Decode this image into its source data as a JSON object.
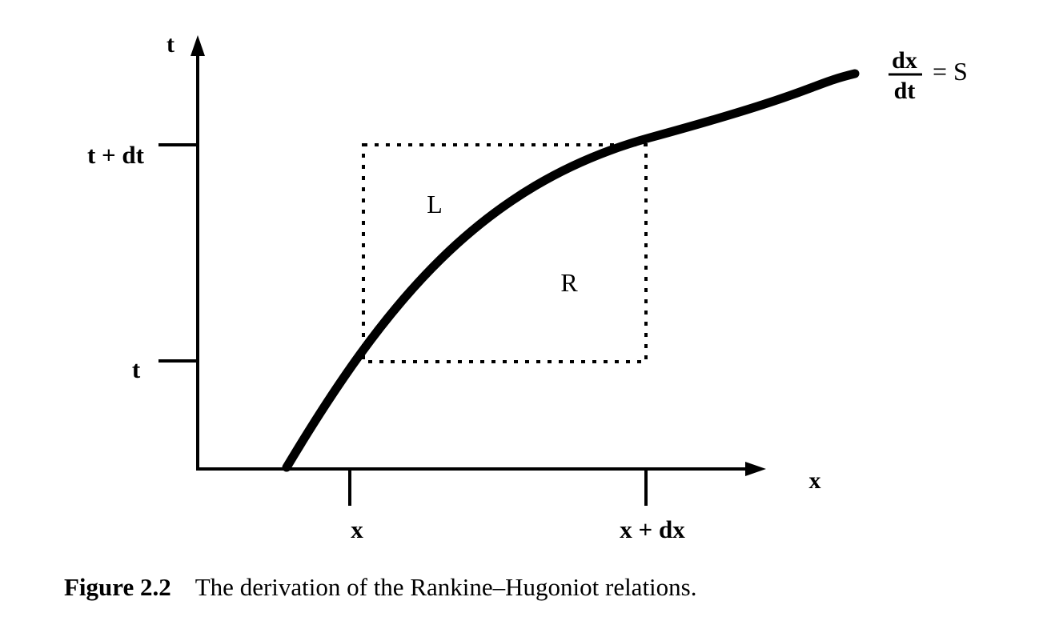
{
  "diagram": {
    "axis_labels": {
      "t": "t",
      "x": "x"
    },
    "t_ticks": {
      "lower": "t",
      "upper": "t + dt"
    },
    "x_ticks": {
      "left": "x",
      "right": "x + dx"
    },
    "regions": {
      "left": "L",
      "right": "R"
    },
    "curve_label": {
      "numerator": "dx",
      "denominator": "dt",
      "rhs": "= S"
    }
  },
  "caption": {
    "number": "Figure 2.2",
    "text": "The derivation of the Rankine–Hugoniot relations."
  }
}
